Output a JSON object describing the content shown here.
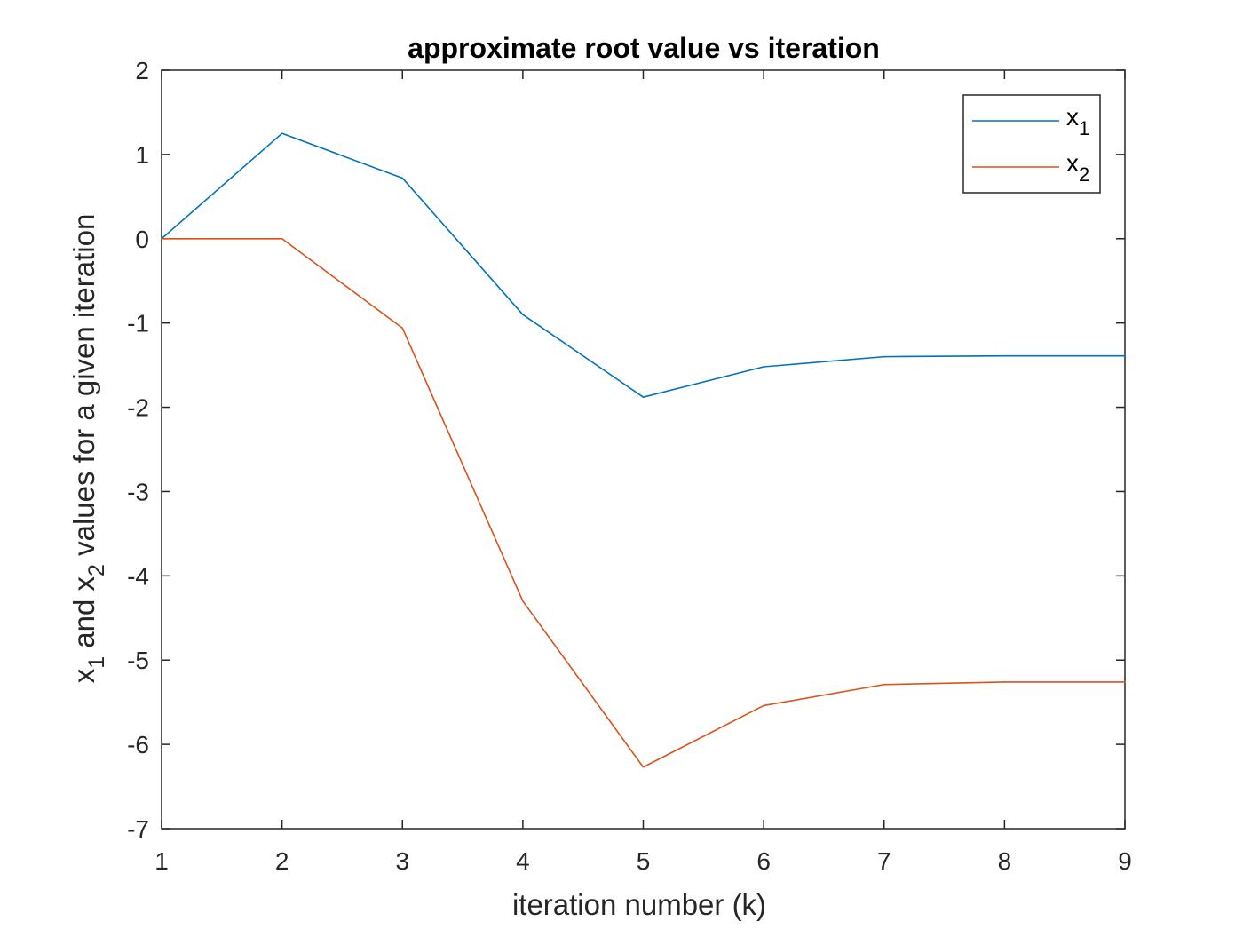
{
  "chart_data": {
    "type": "line",
    "title": "approximate root value vs iteration",
    "xlabel": "iteration number (k)",
    "ylabel": {
      "parts": [
        {
          "text": "x",
          "sub": false
        },
        {
          "text": "1",
          "sub": true
        },
        {
          "text": " and x",
          "sub": false
        },
        {
          "text": "2",
          "sub": true
        },
        {
          "text": " values for a given iteration",
          "sub": false
        }
      ]
    },
    "xlim": [
      1,
      9
    ],
    "ylim": [
      -7,
      2
    ],
    "xticks": [
      1,
      2,
      3,
      4,
      5,
      6,
      7,
      8,
      9
    ],
    "yticks": [
      2,
      1,
      0,
      -1,
      -2,
      -3,
      -4,
      -5,
      -6,
      -7
    ],
    "grid": false,
    "legend_position": "top-right",
    "x": [
      1,
      2,
      3,
      4,
      5,
      6,
      7,
      8,
      9
    ],
    "series": [
      {
        "name": {
          "base": "x",
          "sub": "1"
        },
        "color": "#0072BD",
        "values": [
          0,
          1.25,
          0.72,
          -0.9,
          -1.88,
          -1.52,
          -1.4,
          -1.39,
          -1.39
        ]
      },
      {
        "name": {
          "base": "x",
          "sub": "2"
        },
        "color": "#D95319",
        "values": [
          0,
          0,
          -1.06,
          -4.3,
          -6.27,
          -5.54,
          -5.29,
          -5.26,
          -5.26
        ]
      }
    ]
  }
}
